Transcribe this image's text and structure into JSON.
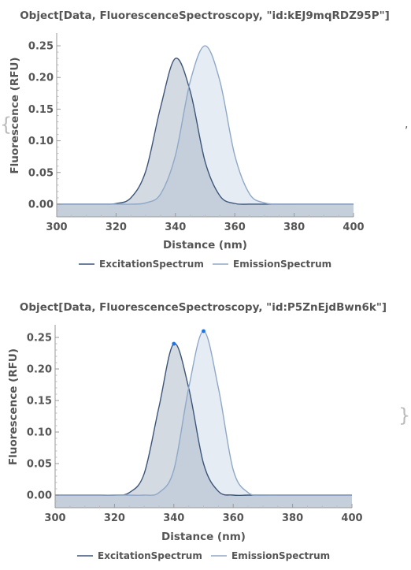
{
  "chart_data": [
    {
      "type": "area",
      "title": "Object[Data, FluorescenceSpectroscopy, \"id:kEJ9mqRDZ95P\"]",
      "xlabel": "Distance  (nm)",
      "ylabel": "Fluorescence  (RFU)",
      "xlim": [
        300,
        400
      ],
      "ylim": [
        -0.02,
        0.27
      ],
      "xticks": [
        "300",
        "320",
        "340",
        "360",
        "380",
        "400"
      ],
      "yticks": [
        "0.00",
        "0.05",
        "0.10",
        "0.15",
        "0.20",
        "0.25"
      ],
      "legend_position": "bottom",
      "series": [
        {
          "name": "ExcitationSpectrum",
          "color": "#3d5578",
          "x": [
            300,
            305,
            310,
            315,
            320,
            325,
            330,
            335,
            340,
            345,
            350,
            355,
            360,
            365,
            370,
            375,
            380,
            385,
            390,
            395,
            400
          ],
          "y": [
            0.0,
            0.0,
            0.0,
            0.0,
            0.001,
            0.01,
            0.052,
            0.153,
            0.23,
            0.178,
            0.067,
            0.013,
            0.001,
            0.0,
            0.0,
            0.0,
            0.0,
            0.0,
            0.0,
            0.0,
            0.0
          ]
        },
        {
          "name": "EmissionSpectrum",
          "color": "#8fa8c8",
          "x": [
            300,
            305,
            310,
            315,
            320,
            325,
            330,
            335,
            340,
            345,
            350,
            355,
            360,
            365,
            370,
            375,
            380,
            385,
            390,
            395,
            400
          ],
          "y": [
            0.0,
            0.0,
            0.0,
            0.0,
            0.0,
            0.0,
            0.002,
            0.016,
            0.077,
            0.194,
            0.25,
            0.194,
            0.077,
            0.016,
            0.002,
            0.0,
            0.0,
            0.0,
            0.0,
            0.0,
            0.0
          ]
        }
      ]
    },
    {
      "type": "area",
      "title": "Object[Data, FluorescenceSpectroscopy, \"id:P5ZnEjdBwn6k\"]",
      "xlabel": "Distance  (nm)",
      "ylabel": "Fluorescence  (RFU)",
      "xlim": [
        300,
        400
      ],
      "ylim": [
        -0.02,
        0.27
      ],
      "xticks": [
        "300",
        "320",
        "340",
        "360",
        "380",
        "400"
      ],
      "yticks": [
        "0.00",
        "0.05",
        "0.10",
        "0.15",
        "0.20",
        "0.25"
      ],
      "legend_position": "bottom",
      "marker_color": "#1a73e8",
      "series": [
        {
          "name": "ExcitationSpectrum",
          "color": "#3d5578",
          "x": [
            300,
            305,
            310,
            315,
            320,
            325,
            330,
            335,
            340,
            345,
            350,
            355,
            360,
            365,
            370,
            375,
            380,
            385,
            390,
            395,
            400
          ],
          "y": [
            0.0,
            0.0,
            0.0,
            0.0,
            0.0,
            0.004,
            0.034,
            0.14,
            0.24,
            0.17,
            0.05,
            0.006,
            0.0,
            0.0,
            0.0,
            0.0,
            0.0,
            0.0,
            0.0,
            0.0,
            0.0
          ],
          "marker": {
            "x": 340,
            "y": 0.24
          }
        },
        {
          "name": "EmissionSpectrum",
          "color": "#8fa8c8",
          "x": [
            300,
            305,
            310,
            315,
            320,
            325,
            330,
            335,
            340,
            345,
            350,
            355,
            360,
            365,
            370,
            375,
            380,
            385,
            390,
            395,
            400
          ],
          "y": [
            0.0,
            0.0,
            0.0,
            0.0,
            0.0,
            0.0,
            0.0,
            0.004,
            0.04,
            0.17,
            0.26,
            0.17,
            0.04,
            0.004,
            0.0,
            0.0,
            0.0,
            0.0,
            0.0,
            0.0,
            0.0
          ],
          "marker": {
            "x": 350,
            "y": 0.26
          }
        }
      ]
    }
  ],
  "decorations": {
    "open_brace": "{",
    "close_brace": "}",
    "separator": ","
  }
}
